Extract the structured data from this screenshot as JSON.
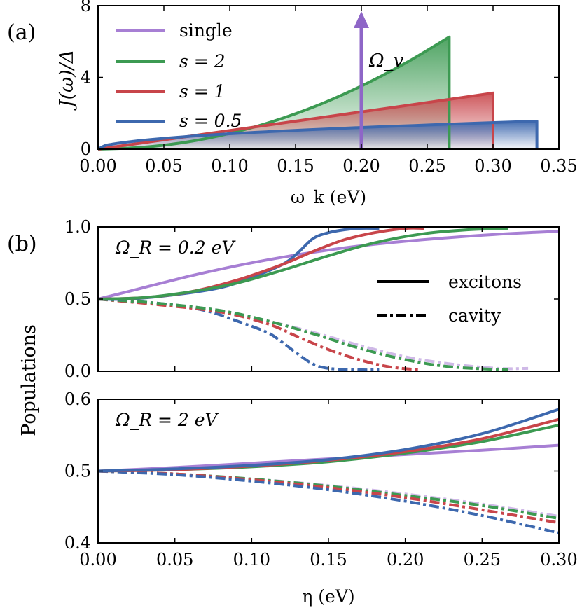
{
  "colors": {
    "single": "#a77fd4",
    "s2": "#3c9a52",
    "s1": "#c8454a",
    "s05": "#3d68ae",
    "arrow": "#8e66c7",
    "axes": "#000000"
  },
  "panel_a": {
    "label": "(a)",
    "ylabel": "J(ω)/Δ",
    "xlabel": "ω_k (eV)",
    "arrow_label": "Ω_v",
    "legend": [
      "single",
      "s = 2",
      "s = 1",
      "s = 0.5"
    ]
  },
  "panel_b": {
    "label": "(b)",
    "ylabel": "Populations",
    "xlabel": "η (eV)",
    "top_annotation": "Ω_R = 0.2 eV",
    "bottom_annotation": "Ω_R = 2 eV",
    "style_legend": [
      "excitons",
      "cavity"
    ]
  },
  "chart_data": [
    {
      "type": "area",
      "panel": "a",
      "xlabel": "ω_k (eV)",
      "ylabel": "J(ω)/Δ",
      "xlim": [
        0,
        0.35
      ],
      "ylim": [
        0,
        8
      ],
      "xticks": [
        0.0,
        0.05,
        0.1,
        0.15,
        0.2,
        0.25,
        0.3,
        0.35
      ],
      "xtick_labels": [
        "0.00",
        "0.05",
        "0.10",
        "0.15",
        "0.20",
        "0.25",
        "0.30",
        "0.35"
      ],
      "yticks": [
        0,
        4,
        8
      ],
      "ytick_labels": [
        "0",
        "4",
        "8"
      ],
      "grid": false,
      "legend_position": "top-left",
      "series": [
        {
          "name": "single",
          "kind": "delta",
          "x": 0.2,
          "y": 8,
          "color": "#8e66c7"
        },
        {
          "name": "s = 2",
          "cutoff": 0.2667,
          "x": [
            0,
            0.0333,
            0.0667,
            0.1,
            0.1333,
            0.1667,
            0.2,
            0.2333,
            0.2667
          ],
          "y": [
            0,
            0.1,
            0.39,
            0.88,
            1.56,
            2.44,
            3.52,
            4.79,
            6.25
          ],
          "color": "#3c9a52"
        },
        {
          "name": "s = 1",
          "cutoff": 0.3,
          "x": [
            0,
            0.05,
            0.1,
            0.15,
            0.2,
            0.25,
            0.3
          ],
          "y": [
            0,
            0.52,
            1.04,
            1.56,
            2.08,
            2.6,
            3.13
          ],
          "color": "#c8454a"
        },
        {
          "name": "s = 0.5",
          "cutoff": 0.3333,
          "x": [
            0,
            0.005,
            0.01,
            0.02,
            0.04,
            0.08,
            0.12,
            0.16,
            0.2,
            0.24,
            0.28,
            0.3333
          ],
          "y": [
            0,
            0.19,
            0.27,
            0.38,
            0.54,
            0.77,
            0.94,
            1.08,
            1.21,
            1.32,
            1.43,
            1.56
          ],
          "color": "#3d68ae"
        }
      ]
    },
    {
      "type": "line",
      "panel": "b-top",
      "ylabel": "Populations",
      "xlim": [
        0,
        0.3
      ],
      "ylim": [
        0,
        1
      ],
      "yticks": [
        0.0,
        0.5,
        1.0
      ],
      "ytick_labels": [
        "0.0",
        "0.5",
        "1.0"
      ],
      "annotation": "Ω_R = 0.2 eV",
      "grid": false,
      "series": [
        {
          "name": "single",
          "style": "solid",
          "color": "#a77fd4",
          "x": [
            0,
            0.03,
            0.06,
            0.09,
            0.12,
            0.15,
            0.18,
            0.21,
            0.24,
            0.27,
            0.3
          ],
          "y": [
            0.5,
            0.58,
            0.66,
            0.73,
            0.79,
            0.84,
            0.88,
            0.91,
            0.935,
            0.955,
            0.97
          ]
        },
        {
          "name": "s = 0.5",
          "style": "solid",
          "color": "#3d68ae",
          "x": [
            0,
            0.02,
            0.05,
            0.08,
            0.1,
            0.12,
            0.13,
            0.14,
            0.15,
            0.16,
            0.17,
            0.183
          ],
          "y": [
            0.5,
            0.5,
            0.53,
            0.58,
            0.65,
            0.74,
            0.82,
            0.92,
            0.96,
            0.98,
            0.99,
            0.99
          ]
        },
        {
          "name": "s = 1",
          "style": "solid",
          "color": "#c8454a",
          "x": [
            0,
            0.03,
            0.06,
            0.09,
            0.12,
            0.14,
            0.16,
            0.18,
            0.2,
            0.212
          ],
          "y": [
            0.5,
            0.51,
            0.55,
            0.63,
            0.74,
            0.83,
            0.91,
            0.96,
            0.99,
            0.99
          ]
        },
        {
          "name": "s = 2",
          "style": "solid",
          "color": "#3c9a52",
          "x": [
            0,
            0.03,
            0.06,
            0.09,
            0.12,
            0.15,
            0.18,
            0.21,
            0.24,
            0.267
          ],
          "y": [
            0.5,
            0.51,
            0.55,
            0.61,
            0.7,
            0.8,
            0.89,
            0.95,
            0.98,
            0.99
          ]
        },
        {
          "name": "single",
          "style": "dashdot",
          "color": "#a77fd4",
          "opacity": 0.55,
          "x": [
            0,
            0.04,
            0.08,
            0.11,
            0.14,
            0.17,
            0.2,
            0.23,
            0.26,
            0.28
          ],
          "y": [
            0.5,
            0.47,
            0.42,
            0.35,
            0.27,
            0.18,
            0.1,
            0.05,
            0.02,
            0.02
          ]
        },
        {
          "name": "s = 0.5",
          "style": "dashdot",
          "color": "#3d68ae",
          "x": [
            0,
            0.04,
            0.07,
            0.09,
            0.11,
            0.12,
            0.13,
            0.14,
            0.15,
            0.17,
            0.183
          ],
          "y": [
            0.5,
            0.47,
            0.42,
            0.35,
            0.27,
            0.2,
            0.12,
            0.05,
            0.02,
            0.01,
            0.01
          ]
        },
        {
          "name": "s = 1",
          "style": "dashdot",
          "color": "#c8454a",
          "x": [
            0,
            0.04,
            0.08,
            0.11,
            0.13,
            0.15,
            0.17,
            0.19,
            0.21
          ],
          "y": [
            0.5,
            0.46,
            0.41,
            0.33,
            0.24,
            0.15,
            0.08,
            0.03,
            0.01
          ]
        },
        {
          "name": "s = 2",
          "style": "dashdot",
          "color": "#3c9a52",
          "x": [
            0,
            0.04,
            0.08,
            0.11,
            0.14,
            0.17,
            0.2,
            0.23,
            0.267
          ],
          "y": [
            0.5,
            0.47,
            0.42,
            0.35,
            0.26,
            0.16,
            0.08,
            0.03,
            0.01
          ]
        }
      ]
    },
    {
      "type": "line",
      "panel": "b-bottom",
      "xlabel": "η (eV)",
      "xlim": [
        0,
        0.3
      ],
      "ylim": [
        0.4,
        0.6
      ],
      "xticks": [
        0.0,
        0.05,
        0.1,
        0.15,
        0.2,
        0.25,
        0.3
      ],
      "xtick_labels": [
        "0.00",
        "0.05",
        "0.10",
        "0.15",
        "0.20",
        "0.25",
        "0.30"
      ],
      "yticks": [
        0.4,
        0.5,
        0.6
      ],
      "ytick_labels": [
        "0.4",
        "0.5",
        "0.6"
      ],
      "annotation": "Ω_R = 2 eV",
      "grid": false,
      "series": [
        {
          "name": "single",
          "style": "solid",
          "color": "#a77fd4",
          "x": [
            0,
            0.05,
            0.1,
            0.15,
            0.2,
            0.25,
            0.3
          ],
          "y": [
            0.5,
            0.505,
            0.511,
            0.517,
            0.523,
            0.529,
            0.536
          ]
        },
        {
          "name": "s = 2",
          "style": "solid",
          "color": "#3c9a52",
          "x": [
            0,
            0.05,
            0.1,
            0.15,
            0.2,
            0.25,
            0.3
          ],
          "y": [
            0.5,
            0.502,
            0.506,
            0.513,
            0.525,
            0.541,
            0.564
          ]
        },
        {
          "name": "s = 1",
          "style": "solid",
          "color": "#c8454a",
          "x": [
            0,
            0.05,
            0.1,
            0.15,
            0.2,
            0.25,
            0.3
          ],
          "y": [
            0.5,
            0.502,
            0.507,
            0.515,
            0.527,
            0.545,
            0.572
          ]
        },
        {
          "name": "s = 0.5",
          "style": "solid",
          "color": "#3d68ae",
          "x": [
            0,
            0.05,
            0.1,
            0.15,
            0.2,
            0.25,
            0.3
          ],
          "y": [
            0.5,
            0.503,
            0.508,
            0.516,
            0.53,
            0.552,
            0.586
          ]
        },
        {
          "name": "single",
          "style": "dashdot",
          "color": "#a77fd4",
          "opacity": 0.55,
          "x": [
            0,
            0.05,
            0.1,
            0.15,
            0.2,
            0.25,
            0.3
          ],
          "y": [
            0.5,
            0.496,
            0.489,
            0.48,
            0.468,
            0.454,
            0.437
          ]
        },
        {
          "name": "s = 2",
          "style": "dashdot",
          "color": "#3c9a52",
          "x": [
            0,
            0.05,
            0.1,
            0.15,
            0.2,
            0.25,
            0.3
          ],
          "y": [
            0.5,
            0.496,
            0.489,
            0.479,
            0.466,
            0.452,
            0.434
          ]
        },
        {
          "name": "s = 1",
          "style": "dashdot",
          "color": "#c8454a",
          "x": [
            0,
            0.05,
            0.1,
            0.15,
            0.2,
            0.25,
            0.3
          ],
          "y": [
            0.5,
            0.496,
            0.488,
            0.477,
            0.463,
            0.446,
            0.428
          ]
        },
        {
          "name": "s = 0.5",
          "style": "dashdot",
          "color": "#3d68ae",
          "x": [
            0,
            0.05,
            0.1,
            0.15,
            0.2,
            0.25,
            0.3
          ],
          "y": [
            0.5,
            0.495,
            0.486,
            0.474,
            0.458,
            0.438,
            0.414
          ]
        }
      ]
    }
  ]
}
